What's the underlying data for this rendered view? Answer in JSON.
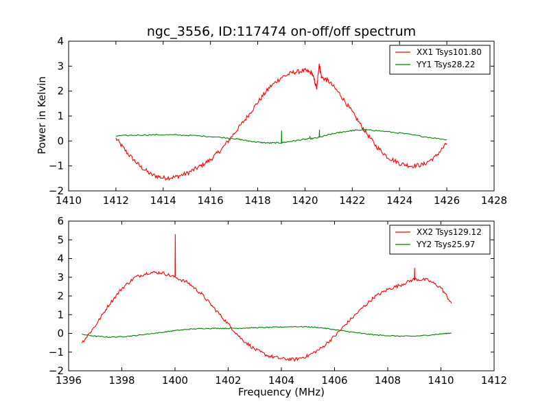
{
  "title": "ngc_3556, ID:117474 on-off/off spectrum",
  "ylabel": "Power in Kelvin",
  "xlabel": "Frequency (MHz)",
  "colors": {
    "xx": "#ff0000",
    "yy": "#008000"
  },
  "chart_data": [
    {
      "type": "line",
      "title": "ngc_3556, ID:117474 on-off/off spectrum",
      "ylabel": "Power in Kelvin",
      "xlim": [
        1410,
        1428
      ],
      "ylim": [
        -2,
        4
      ],
      "xticks": [
        1410,
        1412,
        1414,
        1416,
        1418,
        1420,
        1422,
        1424,
        1426,
        1428
      ],
      "yticks": [
        -2,
        -1,
        0,
        1,
        2,
        3,
        4
      ],
      "legend_position": "top-right",
      "series": [
        {
          "name": "XX1 Tsys101.80",
          "color": "#ff0000",
          "x": [
            1412.0,
            1412.5,
            1413.0,
            1413.5,
            1414.0,
            1414.5,
            1415.0,
            1415.5,
            1416.0,
            1416.5,
            1417.0,
            1417.5,
            1418.0,
            1418.5,
            1419.0,
            1419.5,
            1420.0,
            1420.3,
            1420.5,
            1420.6,
            1420.7,
            1421.0,
            1421.5,
            1422.0,
            1422.5,
            1423.0,
            1423.5,
            1424.0,
            1424.5,
            1425.0,
            1425.5,
            1426.0
          ],
          "y": [
            0.1,
            -0.5,
            -1.0,
            -1.35,
            -1.48,
            -1.45,
            -1.3,
            -1.05,
            -0.75,
            -0.3,
            0.3,
            0.9,
            1.55,
            2.15,
            2.55,
            2.75,
            2.82,
            2.72,
            2.1,
            3.1,
            2.55,
            2.4,
            1.85,
            1.15,
            0.45,
            -0.2,
            -0.65,
            -0.9,
            -1.0,
            -0.95,
            -0.65,
            -0.1
          ],
          "spikes": []
        },
        {
          "name": "YY1 Tsys28.22",
          "color": "#008000",
          "x": [
            1412.0,
            1413.0,
            1414.0,
            1415.0,
            1416.0,
            1417.0,
            1417.5,
            1418.0,
            1418.5,
            1419.0,
            1419.5,
            1420.0,
            1420.5,
            1421.0,
            1421.5,
            1422.0,
            1422.5,
            1423.0,
            1424.0,
            1425.0,
            1426.0
          ],
          "y": [
            0.2,
            0.24,
            0.25,
            0.23,
            0.18,
            0.1,
            0.02,
            -0.05,
            -0.08,
            -0.07,
            0.0,
            0.07,
            0.12,
            0.25,
            0.35,
            0.42,
            0.45,
            0.42,
            0.32,
            0.18,
            0.05
          ],
          "spikes": [
            [
              1419.0,
              0.42
            ],
            [
              1420.2,
              0.2
            ],
            [
              1420.6,
              0.45
            ]
          ]
        }
      ]
    },
    {
      "type": "line",
      "xlabel": "Frequency (MHz)",
      "xlim": [
        1396,
        1412
      ],
      "ylim": [
        -2,
        6
      ],
      "xticks": [
        1396,
        1398,
        1400,
        1402,
        1404,
        1406,
        1408,
        1410,
        1412
      ],
      "yticks": [
        -2,
        -1,
        0,
        1,
        2,
        3,
        4,
        5,
        6
      ],
      "legend_position": "top-right",
      "series": [
        {
          "name": "XX2 Tsys129.12",
          "color": "#ff0000",
          "x": [
            1396.5,
            1397.0,
            1397.5,
            1398.0,
            1398.5,
            1399.0,
            1399.5,
            1400.0,
            1400.5,
            1401.0,
            1401.5,
            1402.0,
            1402.5,
            1403.0,
            1403.5,
            1404.0,
            1404.5,
            1405.0,
            1405.5,
            1406.0,
            1406.5,
            1407.0,
            1407.5,
            1408.0,
            1408.5,
            1409.0,
            1409.5,
            1410.0,
            1410.4
          ],
          "y": [
            -0.5,
            0.4,
            1.5,
            2.4,
            3.0,
            3.25,
            3.25,
            3.0,
            2.7,
            2.1,
            1.3,
            0.5,
            -0.3,
            -0.85,
            -1.2,
            -1.35,
            -1.4,
            -1.2,
            -0.8,
            -0.15,
            0.6,
            1.3,
            1.95,
            2.35,
            2.6,
            2.9,
            2.85,
            2.45,
            1.6
          ],
          "spikes": [
            [
              1400.0,
              5.3
            ],
            [
              1409.0,
              3.5
            ]
          ]
        },
        {
          "name": "YY2 Tsys25.97",
          "color": "#008000",
          "x": [
            1396.5,
            1397.0,
            1397.5,
            1398.0,
            1398.5,
            1399.0,
            1399.5,
            1400.0,
            1400.5,
            1401.0,
            1401.5,
            1402.0,
            1402.5,
            1403.0,
            1403.5,
            1404.0,
            1404.5,
            1405.0,
            1405.5,
            1406.0,
            1406.5,
            1407.0,
            1407.5,
            1408.0,
            1408.5,
            1409.0,
            1409.5,
            1410.0,
            1410.4
          ],
          "y": [
            -0.05,
            -0.15,
            -0.2,
            -0.18,
            -0.12,
            -0.03,
            0.05,
            0.15,
            0.22,
            0.26,
            0.27,
            0.27,
            0.28,
            0.3,
            0.32,
            0.34,
            0.36,
            0.35,
            0.3,
            0.2,
            0.1,
            0.0,
            -0.08,
            -0.12,
            -0.15,
            -0.15,
            -0.1,
            -0.03,
            0.02
          ],
          "spikes": []
        }
      ]
    }
  ]
}
